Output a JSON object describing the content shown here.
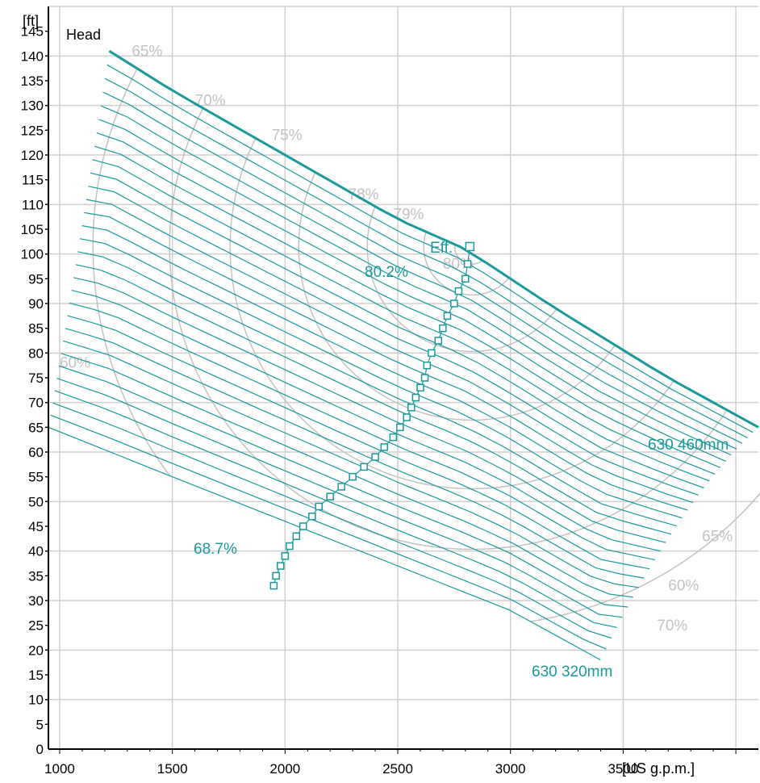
{
  "chart_data": {
    "type": "line",
    "title": "",
    "ylabel_unit": "[ft]",
    "series_label": "Head",
    "xlabel_unit": "[US g.p.m.]",
    "xlim": [
      950,
      4100
    ],
    "ylim": [
      0,
      150
    ],
    "x_ticks": [
      1000,
      1500,
      2000,
      2500,
      3000,
      3500
    ],
    "y_ticks": [
      5,
      10,
      15,
      20,
      25,
      30,
      35,
      40,
      45,
      50,
      55,
      60,
      65,
      70,
      75,
      80,
      85,
      90,
      95,
      100,
      105,
      110,
      115,
      120,
      125,
      130,
      135,
      140,
      145
    ],
    "grid": true,
    "impeller_curves": {
      "count": 30,
      "max_label": "630 460mm",
      "min_label": "630 320mm",
      "max_curve": [
        [
          1220,
          141
        ],
        [
          1500,
          133
        ],
        [
          2000,
          120
        ],
        [
          2500,
          107
        ],
        [
          2800,
          101
        ],
        [
          3200,
          89
        ],
        [
          3700,
          75
        ],
        [
          4100,
          65
        ]
      ],
      "min_curve": [
        [
          950,
          65
        ],
        [
          1500,
          55
        ],
        [
          2000,
          46
        ],
        [
          2500,
          37
        ],
        [
          3000,
          28
        ],
        [
          3400,
          18
        ]
      ]
    },
    "efficiency_contours": [
      {
        "label": "60%",
        "ring": 5,
        "positions": [
          [
            1000,
            77
          ],
          [
            3700,
            32
          ]
        ]
      },
      {
        "label": "65%",
        "ring": 4,
        "positions": [
          [
            1320,
            140
          ],
          [
            3850,
            42
          ]
        ]
      },
      {
        "label": "70%",
        "ring": 3,
        "positions": [
          [
            1600,
            130
          ],
          [
            3650,
            24
          ]
        ]
      },
      {
        "label": "75%",
        "ring": 2,
        "positions": [
          [
            1940,
            123
          ]
        ]
      },
      {
        "label": "78%",
        "ring": 1,
        "positions": [
          [
            2280,
            111
          ]
        ]
      },
      {
        "label": "79%",
        "ring": 0.5,
        "positions": [
          [
            2480,
            107
          ]
        ]
      },
      {
        "label": "80%",
        "ring": 0.18,
        "positions": [
          [
            2700,
            97
          ]
        ]
      }
    ],
    "bep_locus": {
      "label": "Eff.",
      "top_label": "80.2%",
      "bottom_label": "68.7%",
      "points": [
        [
          2820,
          101.5
        ],
        [
          2810,
          98
        ],
        [
          2800,
          95
        ],
        [
          2770,
          92.5
        ],
        [
          2750,
          90
        ],
        [
          2720,
          87.5
        ],
        [
          2700,
          85
        ],
        [
          2680,
          82.5
        ],
        [
          2650,
          80
        ],
        [
          2630,
          77.5
        ],
        [
          2620,
          75
        ],
        [
          2600,
          73
        ],
        [
          2580,
          71
        ],
        [
          2560,
          69
        ],
        [
          2540,
          67
        ],
        [
          2510,
          65
        ],
        [
          2480,
          63
        ],
        [
          2440,
          61
        ],
        [
          2400,
          59
        ],
        [
          2350,
          57
        ],
        [
          2300,
          55
        ],
        [
          2250,
          53
        ],
        [
          2200,
          51
        ],
        [
          2150,
          49
        ],
        [
          2120,
          47
        ],
        [
          2080,
          45
        ],
        [
          2050,
          43
        ],
        [
          2020,
          41
        ],
        [
          2000,
          39
        ],
        [
          1980,
          37
        ],
        [
          1960,
          35
        ],
        [
          1950,
          33
        ]
      ]
    },
    "colors": {
      "curve": "#1a9a9a",
      "efficiency": "#c3c3c3",
      "grid": "#cfcfcf",
      "axis": "#000000"
    }
  }
}
